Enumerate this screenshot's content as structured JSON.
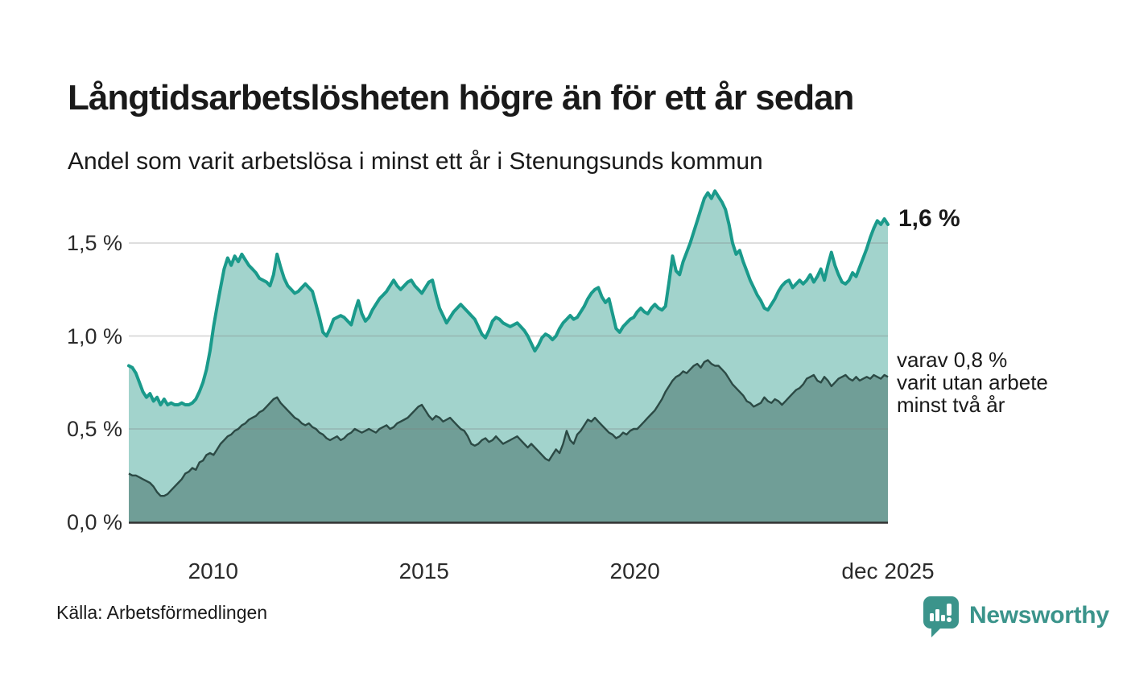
{
  "header": {
    "title": "Långtidsarbetslösheten högre än för ett år sedan",
    "subtitle": "Andel som varit arbetslösa i minst ett år i Stenungsunds kommun"
  },
  "footer": {
    "source": "Källa: Arbetsförmedlingen",
    "brand": "Newsworthy"
  },
  "colors": {
    "line_primary": "#1a9a8b",
    "fill_primary": "#a2d3cc",
    "line_secondary": "#2c4a45",
    "fill_secondary": "#709e97",
    "baseline": "#333333",
    "grid": "rgba(125,125,125,0.35)",
    "brand_teal": "#3b948b",
    "text": "#1a1a1a"
  },
  "chart_data": {
    "type": "area",
    "title": "Långtidsarbetslösheten högre än för ett år sedan",
    "subtitle": "Andel som varit arbetslösa i minst ett år i Stenungsunds kommun",
    "unit": "%",
    "x_start": 2008.0,
    "x_end": 2026.0,
    "points_per_year": 12,
    "ylim": [
      0,
      1.81
    ],
    "grid": true,
    "x_ticks": [
      {
        "label": "2010",
        "value": 2010
      },
      {
        "label": "2015",
        "value": 2015
      },
      {
        "label": "2020",
        "value": 2020
      },
      {
        "label": "dec 2025",
        "value": 2026
      }
    ],
    "y_ticks": [
      {
        "label": "0,0 %",
        "value": 0.0
      },
      {
        "label": "0,5 %",
        "value": 0.5
      },
      {
        "label": "1,0 %",
        "value": 1.0
      },
      {
        "label": "1,5 %",
        "value": 1.5
      }
    ],
    "annotations": {
      "latest": "1,6 %",
      "secondary": [
        "varav 0,8 %",
        "varit utan arbete",
        "minst två år"
      ]
    },
    "series": [
      {
        "name": "Arbetslösa minst ett år",
        "line_color": "#1a9a8b",
        "fill_color": "#a2d3cc",
        "latest_value": 1.6,
        "values": [
          0.84,
          0.83,
          0.8,
          0.75,
          0.7,
          0.67,
          0.69,
          0.65,
          0.67,
          0.63,
          0.66,
          0.63,
          0.64,
          0.63,
          0.63,
          0.64,
          0.63,
          0.63,
          0.64,
          0.66,
          0.7,
          0.75,
          0.82,
          0.92,
          1.05,
          1.16,
          1.26,
          1.36,
          1.42,
          1.38,
          1.43,
          1.4,
          1.44,
          1.41,
          1.38,
          1.36,
          1.34,
          1.31,
          1.3,
          1.29,
          1.27,
          1.33,
          1.44,
          1.37,
          1.31,
          1.27,
          1.25,
          1.23,
          1.24,
          1.26,
          1.28,
          1.26,
          1.24,
          1.17,
          1.1,
          1.02,
          1.0,
          1.04,
          1.09,
          1.1,
          1.11,
          1.1,
          1.08,
          1.06,
          1.13,
          1.19,
          1.12,
          1.08,
          1.1,
          1.14,
          1.17,
          1.2,
          1.22,
          1.24,
          1.27,
          1.3,
          1.27,
          1.25,
          1.27,
          1.29,
          1.3,
          1.27,
          1.25,
          1.23,
          1.26,
          1.29,
          1.3,
          1.22,
          1.15,
          1.11,
          1.07,
          1.1,
          1.13,
          1.15,
          1.17,
          1.15,
          1.13,
          1.11,
          1.09,
          1.05,
          1.01,
          0.99,
          1.03,
          1.08,
          1.1,
          1.09,
          1.07,
          1.06,
          1.05,
          1.06,
          1.07,
          1.05,
          1.03,
          1.0,
          0.96,
          0.92,
          0.95,
          0.99,
          1.01,
          1.0,
          0.98,
          1.0,
          1.04,
          1.07,
          1.09,
          1.11,
          1.09,
          1.1,
          1.13,
          1.16,
          1.2,
          1.23,
          1.25,
          1.26,
          1.21,
          1.18,
          1.2,
          1.12,
          1.04,
          1.02,
          1.05,
          1.07,
          1.09,
          1.1,
          1.13,
          1.15,
          1.13,
          1.12,
          1.15,
          1.17,
          1.15,
          1.14,
          1.16,
          1.29,
          1.43,
          1.35,
          1.33,
          1.4,
          1.45,
          1.5,
          1.56,
          1.62,
          1.68,
          1.74,
          1.77,
          1.74,
          1.78,
          1.75,
          1.72,
          1.68,
          1.6,
          1.5,
          1.44,
          1.46,
          1.4,
          1.35,
          1.3,
          1.26,
          1.22,
          1.19,
          1.15,
          1.14,
          1.17,
          1.2,
          1.24,
          1.27,
          1.29,
          1.3,
          1.26,
          1.28,
          1.3,
          1.28,
          1.3,
          1.33,
          1.29,
          1.32,
          1.36,
          1.3,
          1.38,
          1.45,
          1.38,
          1.33,
          1.29,
          1.28,
          1.3,
          1.34,
          1.32,
          1.37,
          1.42,
          1.47,
          1.53,
          1.58,
          1.62,
          1.6,
          1.63,
          1.6
        ]
      },
      {
        "name": "varav utan arbete minst två år",
        "line_color": "#2c4a45",
        "fill_color": "#709e97",
        "latest_value": 0.8,
        "values": [
          0.26,
          0.25,
          0.25,
          0.24,
          0.23,
          0.22,
          0.21,
          0.19,
          0.16,
          0.14,
          0.14,
          0.15,
          0.17,
          0.19,
          0.21,
          0.23,
          0.26,
          0.27,
          0.29,
          0.28,
          0.32,
          0.33,
          0.36,
          0.37,
          0.36,
          0.39,
          0.42,
          0.44,
          0.46,
          0.47,
          0.49,
          0.5,
          0.52,
          0.53,
          0.55,
          0.56,
          0.57,
          0.59,
          0.6,
          0.62,
          0.64,
          0.66,
          0.67,
          0.64,
          0.62,
          0.6,
          0.58,
          0.56,
          0.55,
          0.53,
          0.52,
          0.53,
          0.51,
          0.5,
          0.48,
          0.47,
          0.45,
          0.44,
          0.45,
          0.46,
          0.44,
          0.45,
          0.47,
          0.48,
          0.5,
          0.49,
          0.48,
          0.49,
          0.5,
          0.49,
          0.48,
          0.5,
          0.51,
          0.52,
          0.5,
          0.51,
          0.53,
          0.54,
          0.55,
          0.56,
          0.58,
          0.6,
          0.62,
          0.63,
          0.6,
          0.57,
          0.55,
          0.57,
          0.56,
          0.54,
          0.55,
          0.56,
          0.54,
          0.52,
          0.5,
          0.49,
          0.46,
          0.42,
          0.41,
          0.42,
          0.44,
          0.45,
          0.43,
          0.44,
          0.46,
          0.44,
          0.42,
          0.43,
          0.44,
          0.45,
          0.46,
          0.44,
          0.42,
          0.4,
          0.42,
          0.4,
          0.38,
          0.36,
          0.34,
          0.33,
          0.36,
          0.39,
          0.37,
          0.42,
          0.49,
          0.44,
          0.42,
          0.47,
          0.49,
          0.52,
          0.55,
          0.54,
          0.56,
          0.54,
          0.52,
          0.5,
          0.48,
          0.47,
          0.45,
          0.46,
          0.48,
          0.47,
          0.49,
          0.5,
          0.5,
          0.52,
          0.54,
          0.56,
          0.58,
          0.6,
          0.63,
          0.66,
          0.7,
          0.73,
          0.76,
          0.78,
          0.79,
          0.81,
          0.8,
          0.82,
          0.84,
          0.85,
          0.83,
          0.86,
          0.87,
          0.85,
          0.84,
          0.84,
          0.82,
          0.8,
          0.77,
          0.74,
          0.72,
          0.7,
          0.68,
          0.65,
          0.64,
          0.62,
          0.63,
          0.64,
          0.67,
          0.65,
          0.64,
          0.66,
          0.65,
          0.63,
          0.65,
          0.67,
          0.69,
          0.71,
          0.72,
          0.74,
          0.77,
          0.78,
          0.79,
          0.76,
          0.75,
          0.78,
          0.76,
          0.73,
          0.75,
          0.77,
          0.78,
          0.79,
          0.77,
          0.76,
          0.78,
          0.76,
          0.77,
          0.78,
          0.77,
          0.79,
          0.78,
          0.77,
          0.79,
          0.78
        ]
      }
    ]
  }
}
